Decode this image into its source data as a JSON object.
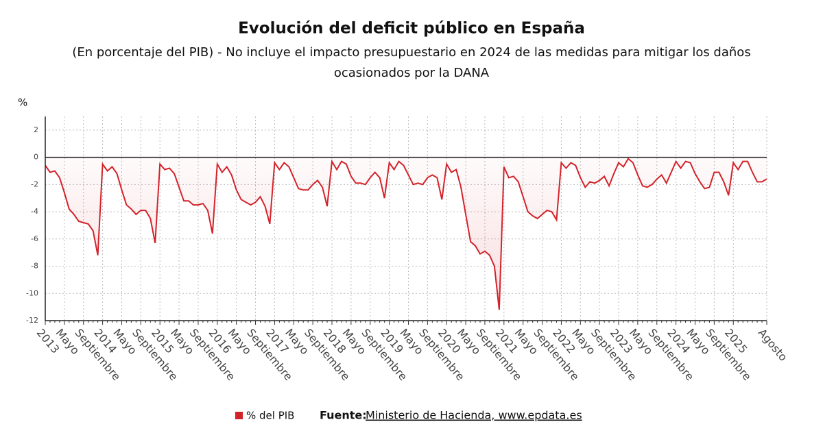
{
  "chart_data": {
    "type": "line",
    "title": "Evolución del deficit público en España",
    "subtitle": "(En porcentaje del PIB) - No incluye el impacto presupuestario en 2024 de las medidas para mitigar los daños ocasionados por la DANA",
    "y_label": "%",
    "source_label": "Fuente:",
    "source": "Ministerio de Hacienda, www.epdata.es",
    "categories": [
      "2013",
      null,
      null,
      null,
      "Mayo",
      null,
      null,
      null,
      "Septiembre",
      null,
      null,
      null,
      "2014",
      null,
      null,
      null,
      "Mayo",
      null,
      null,
      null,
      "Septiembre",
      null,
      null,
      null,
      "2015",
      null,
      null,
      null,
      "Mayo",
      null,
      null,
      null,
      "Septiembre",
      null,
      null,
      null,
      "2016",
      null,
      null,
      null,
      "Mayo",
      null,
      null,
      null,
      "Septiembre",
      null,
      null,
      null,
      "2017",
      null,
      null,
      null,
      "Mayo",
      null,
      null,
      null,
      "Septiembre",
      null,
      null,
      null,
      "2018",
      null,
      null,
      null,
      "Mayo",
      null,
      null,
      null,
      "Septiembre",
      null,
      null,
      null,
      "2019",
      null,
      null,
      null,
      "Mayo",
      null,
      null,
      null,
      "Septiembre",
      null,
      null,
      null,
      "2020",
      null,
      null,
      null,
      "Mayo",
      null,
      null,
      null,
      "Septiembre",
      null,
      null,
      null,
      "2021",
      null,
      null,
      null,
      "Mayo",
      null,
      null,
      null,
      "Septiembre",
      null,
      null,
      null,
      "2022",
      null,
      null,
      null,
      "Mayo",
      null,
      null,
      null,
      "Septiembre",
      null,
      null,
      null,
      "2023",
      null,
      null,
      null,
      "Mayo",
      null,
      null,
      null,
      "Septiembre",
      null,
      null,
      null,
      "2024",
      null,
      null,
      null,
      "Mayo",
      null,
      null,
      null,
      "Septiembre",
      null,
      null,
      null,
      "2025",
      null,
      null,
      null,
      null,
      null,
      null,
      "Agosto"
    ],
    "series": [
      {
        "name": "% del PIB",
        "color": "#d3222a",
        "values": [
          -0.6,
          -1.1,
          -1.0,
          -1.5,
          -2.6,
          -3.8,
          -4.2,
          -4.7,
          -4.8,
          -4.9,
          -5.4,
          -7.2,
          -0.5,
          -1.0,
          -0.7,
          -1.2,
          -2.4,
          -3.5,
          -3.8,
          -4.2,
          -3.9,
          -3.9,
          -4.5,
          -6.3,
          -0.5,
          -0.9,
          -0.8,
          -1.2,
          -2.2,
          -3.2,
          -3.2,
          -3.5,
          -3.5,
          -3.4,
          -3.9,
          -5.6,
          -0.5,
          -1.1,
          -0.7,
          -1.3,
          -2.4,
          -3.1,
          -3.3,
          -3.5,
          -3.3,
          -2.9,
          -3.6,
          -4.9,
          -0.4,
          -0.9,
          -0.4,
          -0.7,
          -1.5,
          -2.3,
          -2.4,
          -2.4,
          -2.0,
          -1.7,
          -2.2,
          -3.6,
          -0.3,
          -0.9,
          -0.3,
          -0.5,
          -1.4,
          -1.9,
          -1.9,
          -2.0,
          -1.5,
          -1.1,
          -1.5,
          -3.0,
          -0.4,
          -0.9,
          -0.3,
          -0.6,
          -1.3,
          -2.0,
          -1.9,
          -2.0,
          -1.5,
          -1.3,
          -1.5,
          -3.1,
          -0.5,
          -1.1,
          -0.9,
          -2.2,
          -4.2,
          -6.2,
          -6.5,
          -7.1,
          -6.9,
          -7.2,
          -8.0,
          -11.2,
          -0.7,
          -1.5,
          -1.4,
          -1.8,
          -2.9,
          -4.0,
          -4.3,
          -4.5,
          -4.2,
          -3.9,
          -4.0,
          -4.6,
          -0.4,
          -0.8,
          -0.4,
          -0.6,
          -1.5,
          -2.2,
          -1.8,
          -1.9,
          -1.7,
          -1.4,
          -2.1,
          -1.2,
          -0.4,
          -0.7,
          -0.1,
          -0.4,
          -1.3,
          -2.1,
          -2.2,
          -2.0,
          -1.6,
          -1.3,
          -1.9,
          -1.1,
          -0.3,
          -0.8,
          -0.3,
          -0.4,
          -1.2,
          -1.8,
          -2.3,
          -2.2,
          -1.1,
          -1.1,
          -1.8,
          -2.8,
          -0.4,
          -0.9,
          -0.3,
          -0.3,
          -1.1,
          -1.8,
          -1.8,
          -1.6
        ]
      }
    ],
    "ylim": [
      -12,
      3
    ],
    "yticks": [
      -12,
      -10,
      -8,
      -6,
      -4,
      -2,
      0,
      2
    ],
    "grid": true
  }
}
